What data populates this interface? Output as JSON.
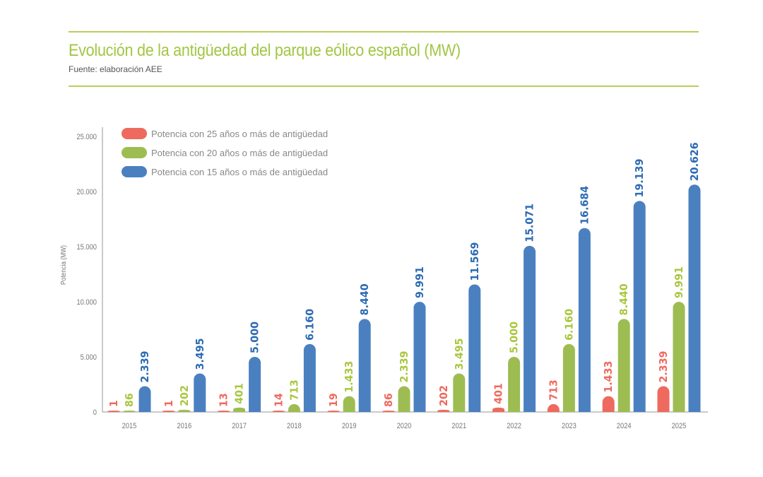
{
  "header": {
    "title": "Evolución de la antigüedad del parque eólico español (MW)",
    "subtitle": "Fuente: elaboración AEE"
  },
  "colors": {
    "accent": "#a3c644",
    "rule": "#b5d15a",
    "axis": "#b9b9b9"
  },
  "chart_data": {
    "type": "bar",
    "title": "Evolución de la antigüedad del parque eólico español (MW)",
    "subtitle": "Fuente: elaboración AEE",
    "xlabel": "",
    "ylabel": "Potencia (MW)",
    "ylim": [
      0,
      25000
    ],
    "yticks": [
      0,
      5000,
      10000,
      15000,
      20000,
      25000
    ],
    "ytick_labels": [
      "0",
      "5.000",
      "10.000",
      "15.000",
      "20.000",
      "25.000"
    ],
    "grid": false,
    "legend_position": "top-left",
    "categories": [
      "2015",
      "2016",
      "2017",
      "2018",
      "2019",
      "2020",
      "2021",
      "2022",
      "2023",
      "2024",
      "2025"
    ],
    "series": [
      {
        "name": "Potencia con 25 años o más de antigüedad",
        "color": "#ee6a5e",
        "values": [
          1,
          1,
          13,
          14,
          19,
          86,
          202,
          401,
          713,
          1433,
          2339
        ],
        "labels": [
          "1",
          "1",
          "13",
          "14",
          "19",
          "86",
          "202",
          "401",
          "713",
          "1.433",
          "2.339"
        ]
      },
      {
        "name": "Potencia con 20 años o más de antigüedad",
        "color": "#9dbd52",
        "label_color": "#a9c73e",
        "values": [
          86,
          202,
          401,
          713,
          1433,
          2339,
          3495,
          5000,
          6160,
          8440,
          9991
        ],
        "labels": [
          "86",
          "202",
          "401",
          "713",
          "1.433",
          "2.339",
          "3.495",
          "5.000",
          "6.160",
          "8.440",
          "9.991"
        ]
      },
      {
        "name": "Potencia con 15 años o más de antigüedad",
        "color": "#4a80c0",
        "label_color": "#2d6bb3",
        "values": [
          2339,
          3495,
          5000,
          6160,
          8440,
          9991,
          11569,
          15071,
          16684,
          19139,
          20626
        ],
        "labels": [
          "2.339",
          "3.495",
          "5.000",
          "6.160",
          "8.440",
          "9.991",
          "11.569",
          "15.071",
          "16.684",
          "19.139",
          "20.626"
        ]
      }
    ]
  }
}
